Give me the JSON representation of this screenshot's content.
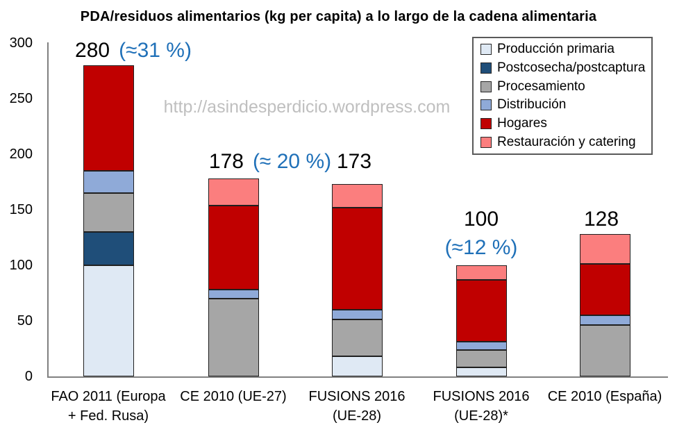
{
  "watermark": "http://asindesperdicio.wordpress.com",
  "accent_colors": {
    "annotation_text": "#000000",
    "annotation_percentage_blue": "#1f70b8",
    "axis_line": "#808080",
    "watermark_gray": "#bfbfbf"
  },
  "chart_data": {
    "type": "bar",
    "stacked": true,
    "title": "PDA/residuos alimentarios (kg per capita) a lo largo de la cadena alimentaria",
    "xlabel": "",
    "ylabel": "",
    "ylim": [
      0,
      300
    ],
    "yticks": [
      0,
      50,
      100,
      150,
      200,
      250,
      300
    ],
    "grid": false,
    "legend_position": "top-right",
    "categories": [
      "FAO 2011 (Europa + Fed. Rusa)",
      "CE 2010 (UE-27)",
      "FUSIONS 2016 (UE-28)",
      "FUSIONS 2016 (UE-28)*",
      "CE 2010 (España)"
    ],
    "category_lines": [
      [
        "FAO 2011 (Europa",
        "+ Fed. Rusa)"
      ],
      [
        "CE 2010 (UE-27)"
      ],
      [
        "FUSIONS 2016",
        "(UE-28)"
      ],
      [
        "FUSIONS 2016",
        "(UE-28)*"
      ],
      [
        "CE 2010 (España)"
      ]
    ],
    "series": [
      {
        "name": "Producción primaria",
        "color": "#dfe9f4",
        "values": [
          100,
          0,
          18,
          8,
          0
        ]
      },
      {
        "name": "Postcosecha/postcaptura",
        "color": "#1f4e79",
        "values": [
          30,
          0,
          0,
          0,
          0
        ]
      },
      {
        "name": "Procesamiento",
        "color": "#a6a6a6",
        "values": [
          35,
          70,
          33,
          16,
          46
        ]
      },
      {
        "name": "Distribución",
        "color": "#8faad8",
        "values": [
          20,
          8,
          9,
          7,
          9
        ]
      },
      {
        "name": "Hogares",
        "color": "#c00000",
        "values": [
          95,
          76,
          92,
          56,
          46
        ]
      },
      {
        "name": "Restauración y catering",
        "color": "#fb7e7e",
        "values": [
          0,
          24,
          21,
          13,
          27
        ]
      }
    ],
    "totals": [
      280,
      178,
      173,
      100,
      128
    ],
    "annotations": [
      {
        "value": "280",
        "pct": "(≈31 %)",
        "layout": "inline"
      },
      {
        "value": "178",
        "pct": "(≈ 20 %)",
        "layout": "inline"
      },
      {
        "value": "173",
        "layout": "inline"
      },
      {
        "value": "100",
        "pct": "(≈12 %)",
        "layout": "stacked"
      },
      {
        "value": "128",
        "layout": "inline"
      }
    ]
  }
}
